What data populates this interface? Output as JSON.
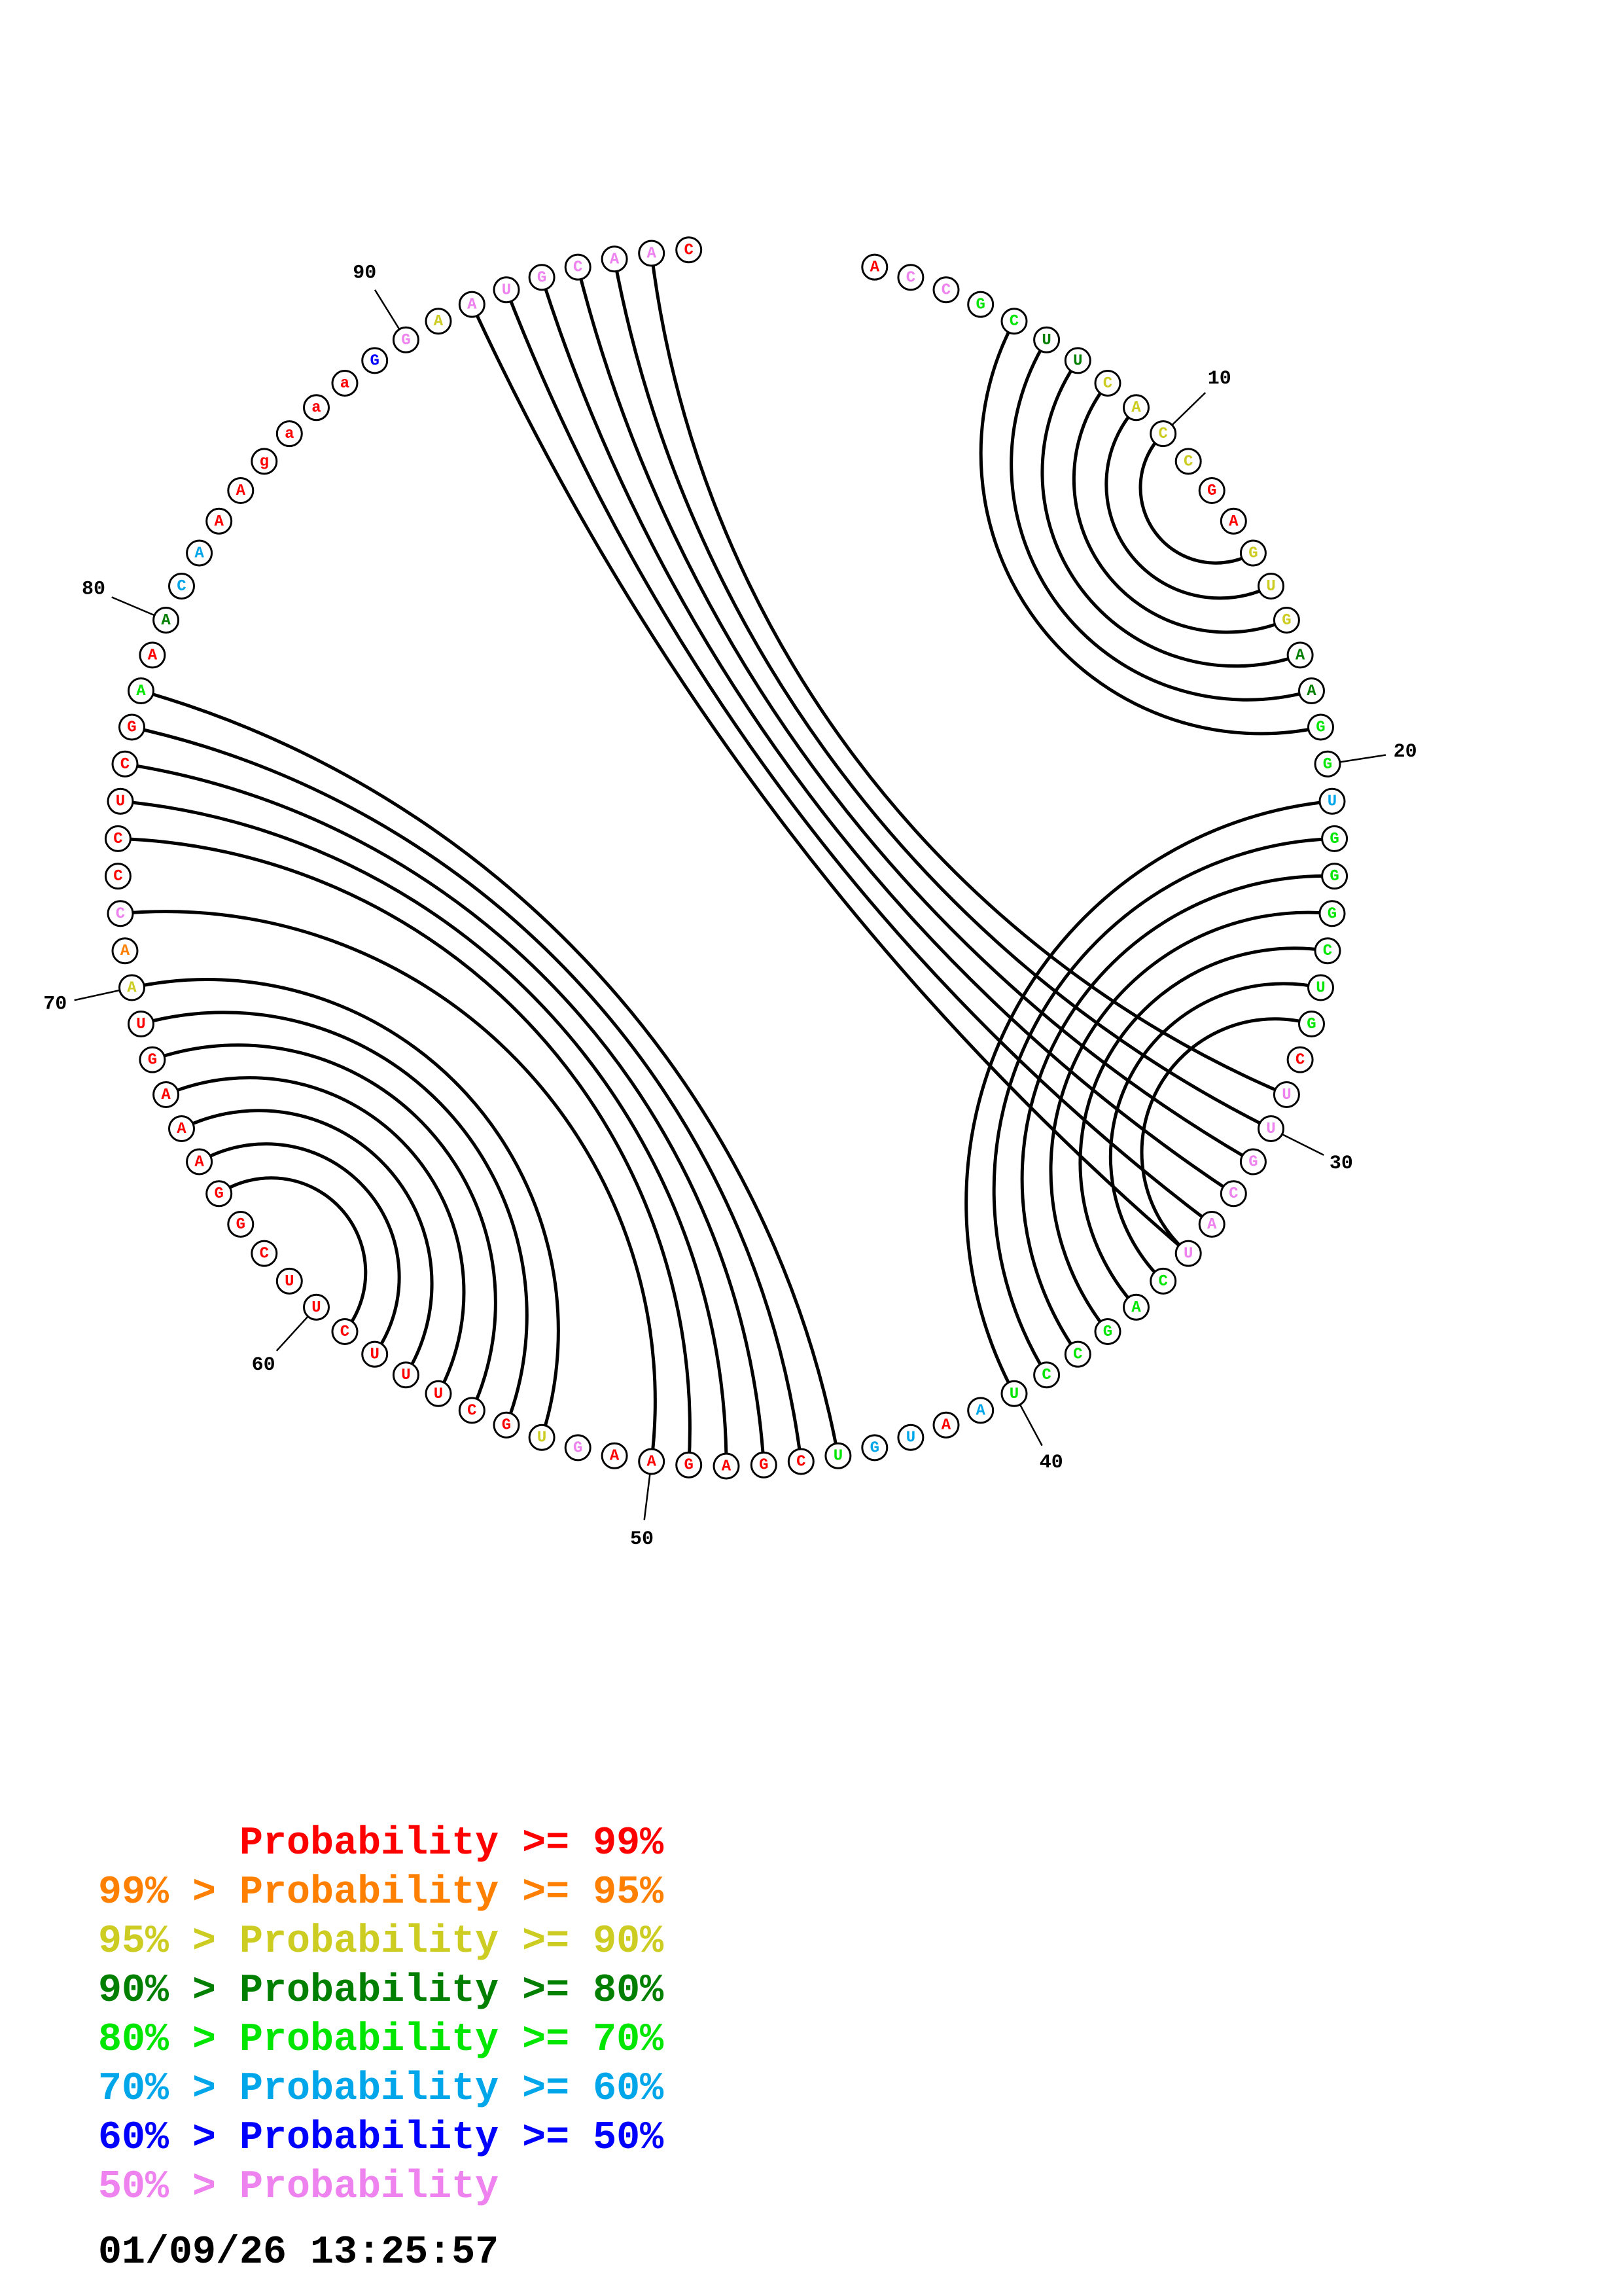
{
  "sequence": [
    {
      "n": 1,
      "b": "A",
      "c": "red"
    },
    {
      "n": 2,
      "b": "C",
      "c": "pink"
    },
    {
      "n": 3,
      "b": "C",
      "c": "pink"
    },
    {
      "n": 4,
      "b": "G",
      "c": "green"
    },
    {
      "n": 5,
      "b": "C",
      "c": "green"
    },
    {
      "n": 6,
      "b": "U",
      "c": "darkgreen"
    },
    {
      "n": 7,
      "b": "U",
      "c": "darkgreen"
    },
    {
      "n": 8,
      "b": "C",
      "c": "yellow"
    },
    {
      "n": 9,
      "b": "A",
      "c": "yellow"
    },
    {
      "n": 10,
      "b": "C",
      "c": "yellow"
    },
    {
      "n": 11,
      "b": "C",
      "c": "yellow"
    },
    {
      "n": 12,
      "b": "G",
      "c": "red"
    },
    {
      "n": 13,
      "b": "A",
      "c": "red"
    },
    {
      "n": 14,
      "b": "G",
      "c": "yellow"
    },
    {
      "n": 15,
      "b": "U",
      "c": "yellow"
    },
    {
      "n": 16,
      "b": "G",
      "c": "yellow"
    },
    {
      "n": 17,
      "b": "A",
      "c": "darkgreen"
    },
    {
      "n": 18,
      "b": "A",
      "c": "darkgreen"
    },
    {
      "n": 19,
      "b": "G",
      "c": "green"
    },
    {
      "n": 20,
      "b": "G",
      "c": "green"
    },
    {
      "n": 21,
      "b": "U",
      "c": "cyan"
    },
    {
      "n": 22,
      "b": "G",
      "c": "green"
    },
    {
      "n": 23,
      "b": "G",
      "c": "green"
    },
    {
      "n": 24,
      "b": "G",
      "c": "green"
    },
    {
      "n": 25,
      "b": "C",
      "c": "green"
    },
    {
      "n": 26,
      "b": "U",
      "c": "green"
    },
    {
      "n": 27,
      "b": "G",
      "c": "green"
    },
    {
      "n": 28,
      "b": "C",
      "c": "red"
    },
    {
      "n": 29,
      "b": "U",
      "c": "pink"
    },
    {
      "n": 30,
      "b": "U",
      "c": "pink"
    },
    {
      "n": 31,
      "b": "G",
      "c": "pink"
    },
    {
      "n": 32,
      "b": "C",
      "c": "pink"
    },
    {
      "n": 33,
      "b": "A",
      "c": "pink"
    },
    {
      "n": 34,
      "b": "U",
      "c": "pink"
    },
    {
      "n": 35,
      "b": "C",
      "c": "green"
    },
    {
      "n": 36,
      "b": "A",
      "c": "green"
    },
    {
      "n": 37,
      "b": "G",
      "c": "green"
    },
    {
      "n": 38,
      "b": "C",
      "c": "green"
    },
    {
      "n": 39,
      "b": "C",
      "c": "green"
    },
    {
      "n": 40,
      "b": "U",
      "c": "green"
    },
    {
      "n": 41,
      "b": "A",
      "c": "cyan"
    },
    {
      "n": 42,
      "b": "A",
      "c": "red"
    },
    {
      "n": 43,
      "b": "U",
      "c": "cyan"
    },
    {
      "n": 44,
      "b": "G",
      "c": "cyan"
    },
    {
      "n": 45,
      "b": "U",
      "c": "green"
    },
    {
      "n": 46,
      "b": "C",
      "c": "red"
    },
    {
      "n": 47,
      "b": "G",
      "c": "red"
    },
    {
      "n": 48,
      "b": "A",
      "c": "red"
    },
    {
      "n": 49,
      "b": "G",
      "c": "red"
    },
    {
      "n": 50,
      "b": "A",
      "c": "red"
    },
    {
      "n": 51,
      "b": "A",
      "c": "red"
    },
    {
      "n": 52,
      "b": "G",
      "c": "pink"
    },
    {
      "n": 53,
      "b": "U",
      "c": "yellow"
    },
    {
      "n": 54,
      "b": "G",
      "c": "red"
    },
    {
      "n": 55,
      "b": "C",
      "c": "red"
    },
    {
      "n": 56,
      "b": "U",
      "c": "red"
    },
    {
      "n": 57,
      "b": "U",
      "c": "red"
    },
    {
      "n": 58,
      "b": "U",
      "c": "red"
    },
    {
      "n": 59,
      "b": "C",
      "c": "red"
    },
    {
      "n": 60,
      "b": "U",
      "c": "red"
    },
    {
      "n": 61,
      "b": "U",
      "c": "red"
    },
    {
      "n": 62,
      "b": "C",
      "c": "red"
    },
    {
      "n": 63,
      "b": "G",
      "c": "red"
    },
    {
      "n": 64,
      "b": "G",
      "c": "red"
    },
    {
      "n": 65,
      "b": "A",
      "c": "red"
    },
    {
      "n": 66,
      "b": "A",
      "c": "red"
    },
    {
      "n": 67,
      "b": "A",
      "c": "red"
    },
    {
      "n": 68,
      "b": "G",
      "c": "red"
    },
    {
      "n": 69,
      "b": "U",
      "c": "red"
    },
    {
      "n": 70,
      "b": "A",
      "c": "yellow"
    },
    {
      "n": 71,
      "b": "A",
      "c": "orange"
    },
    {
      "n": 72,
      "b": "C",
      "c": "pink"
    },
    {
      "n": 73,
      "b": "C",
      "c": "red"
    },
    {
      "n": 74,
      "b": "C",
      "c": "red"
    },
    {
      "n": 75,
      "b": "U",
      "c": "red"
    },
    {
      "n": 76,
      "b": "C",
      "c": "red"
    },
    {
      "n": 77,
      "b": "G",
      "c": "red"
    },
    {
      "n": 78,
      "b": "A",
      "c": "green"
    },
    {
      "n": 79,
      "b": "A",
      "c": "red"
    },
    {
      "n": 80,
      "b": "A",
      "c": "darkgreen"
    },
    {
      "n": 81,
      "b": "C",
      "c": "cyan"
    },
    {
      "n": 82,
      "b": "A",
      "c": "cyan"
    },
    {
      "n": 83,
      "b": "A",
      "c": "red"
    },
    {
      "n": 84,
      "b": "A",
      "c": "red"
    },
    {
      "n": 85,
      "b": "g",
      "c": "red"
    },
    {
      "n": 86,
      "b": "a",
      "c": "red"
    },
    {
      "n": 87,
      "b": "a",
      "c": "red"
    },
    {
      "n": 88,
      "b": "a",
      "c": "red"
    },
    {
      "n": 89,
      "b": "G",
      "c": "blue"
    },
    {
      "n": 90,
      "b": "G",
      "c": "pink"
    },
    {
      "n": 91,
      "b": "A",
      "c": "yellow"
    },
    {
      "n": 92,
      "b": "A",
      "c": "pink"
    },
    {
      "n": 93,
      "b": "U",
      "c": "pink"
    },
    {
      "n": 94,
      "b": "G",
      "c": "pink"
    },
    {
      "n": 95,
      "b": "C",
      "c": "pink"
    },
    {
      "n": 96,
      "b": "A",
      "c": "pink"
    },
    {
      "n": 97,
      "b": "A",
      "c": "pink"
    },
    {
      "n": 98,
      "b": "C",
      "c": "red"
    }
  ],
  "pairs": [
    [
      5,
      19
    ],
    [
      6,
      18
    ],
    [
      7,
      17
    ],
    [
      8,
      16
    ],
    [
      9,
      15
    ],
    [
      10,
      14
    ],
    [
      21,
      40
    ],
    [
      22,
      39
    ],
    [
      23,
      38
    ],
    [
      24,
      37
    ],
    [
      25,
      36
    ],
    [
      26,
      35
    ],
    [
      27,
      34
    ],
    [
      29,
      97
    ],
    [
      30,
      96
    ],
    [
      31,
      95
    ],
    [
      32,
      94
    ],
    [
      33,
      93
    ],
    [
      34,
      92
    ],
    [
      45,
      78
    ],
    [
      46,
      77
    ],
    [
      47,
      76
    ],
    [
      48,
      75
    ],
    [
      49,
      74
    ],
    [
      50,
      72
    ],
    [
      53,
      70
    ],
    [
      54,
      69
    ],
    [
      55,
      68
    ],
    [
      56,
      67
    ],
    [
      57,
      66
    ],
    [
      58,
      65
    ],
    [
      59,
      64
    ]
  ],
  "tick_labels": [
    "10",
    "20",
    "30",
    "40",
    "50",
    "60",
    "70",
    "80",
    "90"
  ],
  "legend": [
    {
      "prefix": "",
      "label": "Probability >= 99%",
      "color": "red"
    },
    {
      "prefix": "99% > ",
      "label": "Probability >= 95%",
      "color": "orange"
    },
    {
      "prefix": "95% > ",
      "label": "Probability >= 90%",
      "color": "yellow"
    },
    {
      "prefix": "90% > ",
      "label": "Probability >= 80%",
      "color": "darkgreen"
    },
    {
      "prefix": "80% > ",
      "label": "Probability >= 70%",
      "color": "green"
    },
    {
      "prefix": "70% > ",
      "label": "Probability >= 60%",
      "color": "cyan"
    },
    {
      "prefix": "60% > ",
      "label": "Probability >= 50%",
      "color": "blue"
    },
    {
      "prefix": "50% > ",
      "label": "Probability",
      "color": "pink"
    }
  ],
  "legend_rows": {
    "r0": "      Probability >= 99%",
    "r1": "99% > Probability >= 95%",
    "r2": "95% > Probability >= 90%",
    "r3": "90% > Probability >= 80%",
    "r4": "80% > Probability >= 70%",
    "r5": "70% > Probability >= 60%",
    "r6": "60% > Probability >= 50%",
    "r7": "50% > Probability"
  },
  "timestamp": "01/09/26 13:25:57",
  "colors": {
    "red": "#ff0000",
    "orange": "#ff8000",
    "yellow": "#cccc22",
    "darkgreen": "#007f00",
    "green": "#00e600",
    "cyan": "#00a6ea",
    "blue": "#0000ff",
    "pink": "#ee82ee"
  }
}
